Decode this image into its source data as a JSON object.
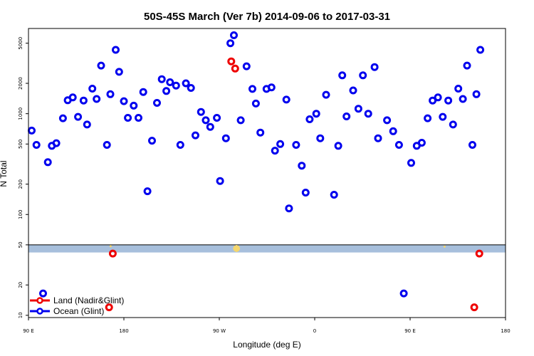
{
  "chart_data": {
    "type": "scatter",
    "title": "50S-45S March (Ver 7b)   2014-09-06 to 2017-03-31",
    "xlabel": "Longitude (deg E)",
    "ylabel": "N Total",
    "y_scale": "log",
    "xlim": [
      90,
      270
    ],
    "ylim": [
      9.5,
      7000
    ],
    "x_ticks": [
      {
        "value": 90,
        "label": "90 E"
      },
      {
        "value": 126,
        "label": "180"
      },
      {
        "value": 162,
        "label": "90 W"
      },
      {
        "value": 198,
        "label": "0"
      },
      {
        "value": 234,
        "label": "90 E"
      },
      {
        "value": 270,
        "label": "180"
      }
    ],
    "y_ticks": [
      10,
      20,
      50,
      100,
      200,
      500,
      1000,
      2000,
      5000
    ],
    "band": {
      "y_range": [
        42,
        50
      ],
      "color": "#a7bfdc"
    },
    "band_flecks": [
      {
        "x": 121,
        "y": 48.5
      },
      {
        "x": 168.5,
        "y": 46
      },
      {
        "x": 247,
        "y": 48
      }
    ],
    "legend_position": "bottom-left",
    "series": [
      {
        "name": "Ocean (Glint)",
        "color": "#0000ee",
        "points": [
          [
            91.2,
            680
          ],
          [
            93,
            490
          ],
          [
            95.5,
            16.5
          ],
          [
            97.3,
            330
          ],
          [
            98.8,
            480
          ],
          [
            100.5,
            510
          ],
          [
            103,
            900
          ],
          [
            104.8,
            1360
          ],
          [
            106.7,
            1450
          ],
          [
            108.7,
            930
          ],
          [
            110.8,
            1350
          ],
          [
            112.1,
            780
          ],
          [
            114.1,
            1770
          ],
          [
            115.7,
            1400
          ],
          [
            117.4,
            3000
          ],
          [
            119.6,
            490
          ],
          [
            120.9,
            1560
          ],
          [
            122.9,
            4300
          ],
          [
            124.2,
            2600
          ],
          [
            126,
            1330
          ],
          [
            127.5,
            910
          ],
          [
            129.7,
            1200
          ],
          [
            131.5,
            910
          ],
          [
            133.3,
            1640
          ],
          [
            134.9,
            170
          ],
          [
            136.6,
            540
          ],
          [
            138.5,
            1280
          ],
          [
            140.3,
            2200
          ],
          [
            142,
            1680
          ],
          [
            143.4,
            2050
          ],
          [
            145.7,
            1900
          ],
          [
            147.3,
            490
          ],
          [
            149.4,
            2000
          ],
          [
            151.3,
            1800
          ],
          [
            153,
            610
          ],
          [
            155.1,
            1040
          ],
          [
            156.9,
            860
          ],
          [
            158.6,
            740
          ],
          [
            161.1,
            910
          ],
          [
            162.3,
            215
          ],
          [
            164.5,
            570
          ],
          [
            167.5,
            6000
          ],
          [
            166.2,
            5000
          ],
          [
            170.1,
            860
          ],
          [
            172.3,
            2950
          ],
          [
            174.5,
            1760
          ],
          [
            175.8,
            1260
          ],
          [
            177.5,
            650
          ],
          [
            179.8,
            1760
          ],
          [
            181.7,
            1820
          ],
          [
            183,
            430
          ],
          [
            185,
            500
          ],
          [
            187.3,
            1380
          ],
          [
            188.3,
            115
          ],
          [
            191,
            490
          ],
          [
            193.1,
            305
          ],
          [
            194.6,
            165
          ],
          [
            196.1,
            880
          ],
          [
            198.6,
            1000
          ],
          [
            200.1,
            570
          ],
          [
            202.3,
            1540
          ],
          [
            205.3,
            157
          ],
          [
            206.9,
            480
          ],
          [
            208.4,
            2400
          ],
          [
            210,
            940
          ],
          [
            212.5,
            1700
          ],
          [
            214.5,
            1120
          ],
          [
            216.2,
            2400
          ],
          [
            218.2,
            1000
          ],
          [
            220.6,
            2900
          ],
          [
            221.9,
            570
          ],
          [
            225.3,
            860
          ],
          [
            227.6,
            670
          ],
          [
            229.8,
            490
          ],
          [
            231.6,
            16.5
          ],
          [
            234.4,
            325
          ],
          [
            236.5,
            480
          ],
          [
            238.4,
            515
          ],
          [
            240.6,
            900
          ],
          [
            242.5,
            1350
          ],
          [
            244.5,
            1450
          ],
          [
            246.3,
            930
          ],
          [
            248.4,
            1350
          ],
          [
            250.2,
            780
          ],
          [
            252.2,
            1770
          ],
          [
            253.9,
            1400
          ],
          [
            255.5,
            3000
          ],
          [
            257.5,
            490
          ],
          [
            259,
            1560
          ],
          [
            260.5,
            4300
          ]
        ]
      },
      {
        "name": "Land (Nadir&Glint)",
        "color": "#ee0000",
        "points": [
          [
            120.4,
            12
          ],
          [
            121.8,
            41
          ],
          [
            166.5,
            3300
          ],
          [
            168,
            2800
          ],
          [
            258.2,
            12
          ],
          [
            260.1,
            41
          ]
        ]
      }
    ]
  }
}
